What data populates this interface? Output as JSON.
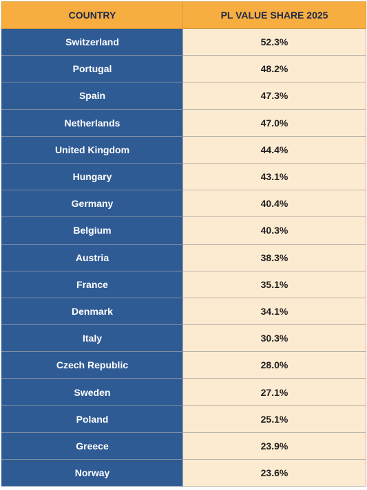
{
  "chart_data": {
    "type": "table",
    "columns": [
      "COUNTRY",
      "PL VALUE SHARE 2025"
    ],
    "rows": [
      {
        "country": "Switzerland",
        "value": "52.3%"
      },
      {
        "country": "Portugal",
        "value": "48.2%"
      },
      {
        "country": "Spain",
        "value": "47.3%"
      },
      {
        "country": "Netherlands",
        "value": "47.0%"
      },
      {
        "country": "United Kingdom",
        "value": "44.4%"
      },
      {
        "country": "Hungary",
        "value": "43.1%"
      },
      {
        "country": "Germany",
        "value": "40.4%"
      },
      {
        "country": "Belgium",
        "value": "40.3%"
      },
      {
        "country": "Austria",
        "value": "38.3%"
      },
      {
        "country": "France",
        "value": "35.1%"
      },
      {
        "country": "Denmark",
        "value": "34.1%"
      },
      {
        "country": "Italy",
        "value": "30.3%"
      },
      {
        "country": "Czech Republic",
        "value": "28.0%"
      },
      {
        "country": "Sweden",
        "value": "27.1%"
      },
      {
        "country": "Poland",
        "value": "25.1%"
      },
      {
        "country": "Greece",
        "value": "23.9%"
      },
      {
        "country": "Norway",
        "value": "23.6%"
      }
    ]
  },
  "colors": {
    "header_bg": "#f8ad40",
    "header_text": "#1c2a4a",
    "country_bg": "#2f5b94",
    "value_bg": "#fdebd1"
  }
}
